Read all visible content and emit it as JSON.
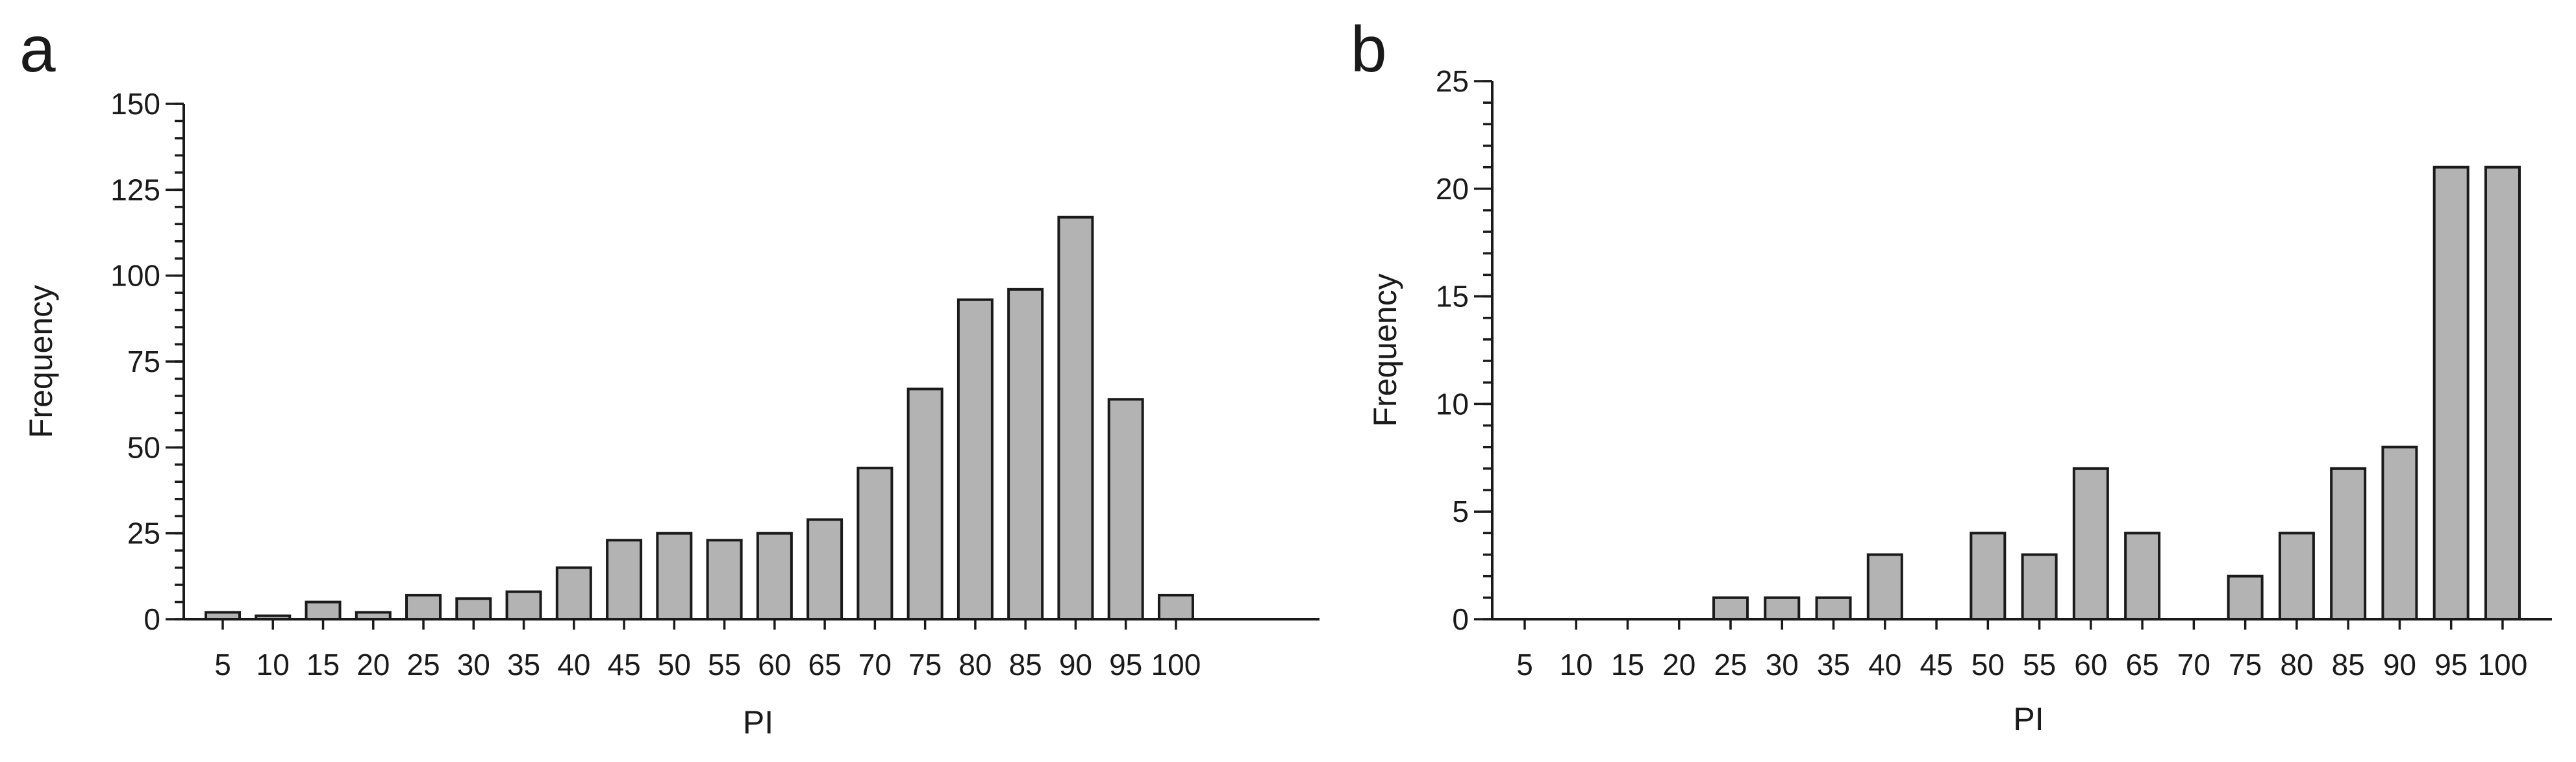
{
  "chart_data": [
    {
      "panel": "a",
      "type": "bar",
      "xlabel": "PI",
      "ylabel": "Frequency",
      "ylim": [
        0,
        150
      ],
      "y_major_ticks": [
        0,
        25,
        50,
        75,
        100,
        125,
        150
      ],
      "y_minor_step": 5,
      "categories": [
        "5",
        "10",
        "15",
        "20",
        "25",
        "30",
        "35",
        "40",
        "45",
        "50",
        "55",
        "60",
        "65",
        "70",
        "75",
        "80",
        "85",
        "90",
        "95",
        "100"
      ],
      "values": [
        2,
        1,
        5,
        2,
        7,
        6,
        8,
        15,
        23,
        25,
        23,
        25,
        29,
        44,
        67,
        93,
        96,
        117,
        64,
        7
      ],
      "bar_color": "#b3b3b3",
      "grid": false
    },
    {
      "panel": "b",
      "type": "bar",
      "xlabel": "PI",
      "ylabel": "Frequency",
      "ylim": [
        0,
        25
      ],
      "y_major_ticks": [
        0,
        5,
        10,
        15,
        20,
        25
      ],
      "y_minor_step": 1,
      "categories": [
        "5",
        "10",
        "15",
        "20",
        "25",
        "30",
        "35",
        "40",
        "45",
        "50",
        "55",
        "60",
        "65",
        "70",
        "75",
        "80",
        "85",
        "90",
        "95",
        "100"
      ],
      "values": [
        0,
        0,
        0,
        0,
        1,
        1,
        1,
        3,
        0,
        4,
        3,
        7,
        4,
        0,
        2,
        4,
        7,
        8,
        21,
        21
      ],
      "bar_color": "#b3b3b3",
      "grid": false
    }
  ]
}
